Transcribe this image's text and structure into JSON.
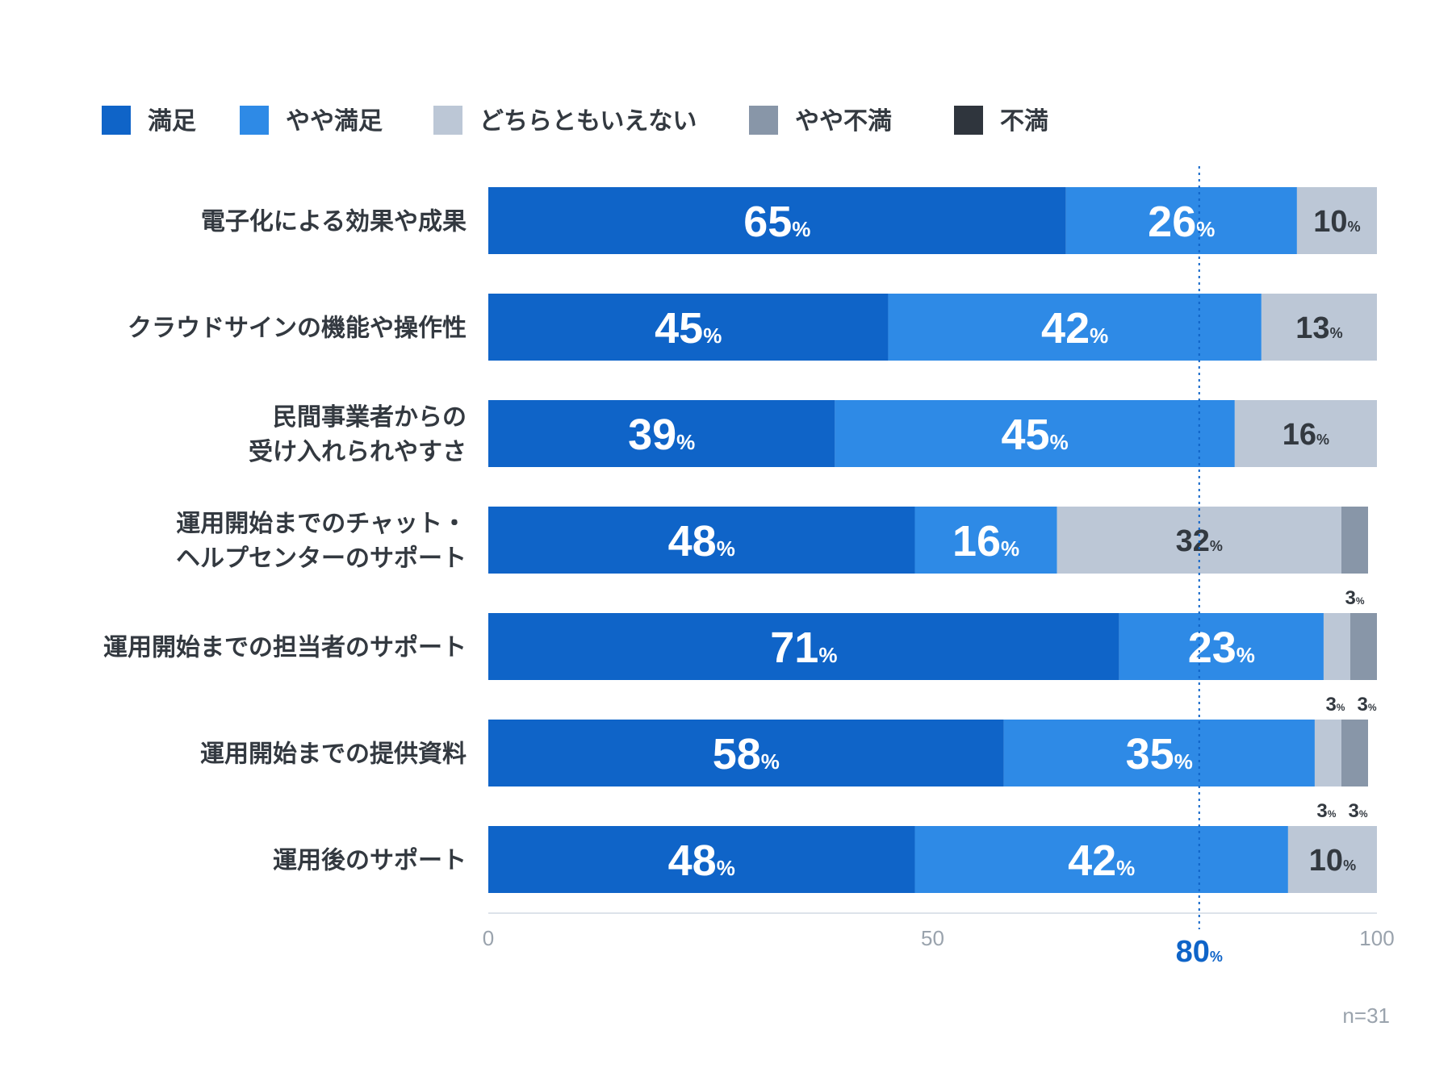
{
  "chart_data": {
    "type": "bar",
    "orientation": "horizontal",
    "stacked": true,
    "categories": [
      [
        "電子化による効果や成果"
      ],
      [
        "クラウドサインの機能や操作性"
      ],
      [
        "民間事業者からの",
        "受け入れられやすさ"
      ],
      [
        "運用開始までのチャット・",
        "ヘルプセンターのサポート"
      ],
      [
        "運用開始までの担当者のサポート"
      ],
      [
        "運用開始までの提供資料"
      ],
      [
        "運用後のサポート"
      ]
    ],
    "series": [
      {
        "name": "満足",
        "color": "#0f64c8",
        "label_color": "#ffffff",
        "values": [
          65,
          45,
          39,
          48,
          71,
          58,
          48
        ]
      },
      {
        "name": "やや満足",
        "color": "#2e8ae6",
        "label_color": "#ffffff",
        "values": [
          26,
          42,
          45,
          16,
          23,
          35,
          42
        ]
      },
      {
        "name": "どちらともいえない",
        "color": "#bcc7d6",
        "label_color": "#333940",
        "values": [
          10,
          13,
          16,
          32,
          3,
          3,
          10
        ]
      },
      {
        "name": "やや不満",
        "color": "#8896a8",
        "label_color": "#333940",
        "values": [
          0,
          0,
          0,
          3,
          3,
          3,
          0
        ]
      },
      {
        "name": "不満",
        "color": "#2f353d",
        "label_color": "#ffffff",
        "values": [
          0,
          0,
          0,
          0,
          0,
          0,
          0
        ]
      }
    ],
    "value_suffix": "%",
    "xlim": [
      0,
      100
    ],
    "x_ticks": [
      "0",
      "50",
      "100"
    ],
    "reference_line": {
      "value": 80,
      "label": "80",
      "suffix": "%",
      "color": "#0f64c8"
    },
    "legend_position": "top-left",
    "note": "n=31",
    "grid": false
  }
}
